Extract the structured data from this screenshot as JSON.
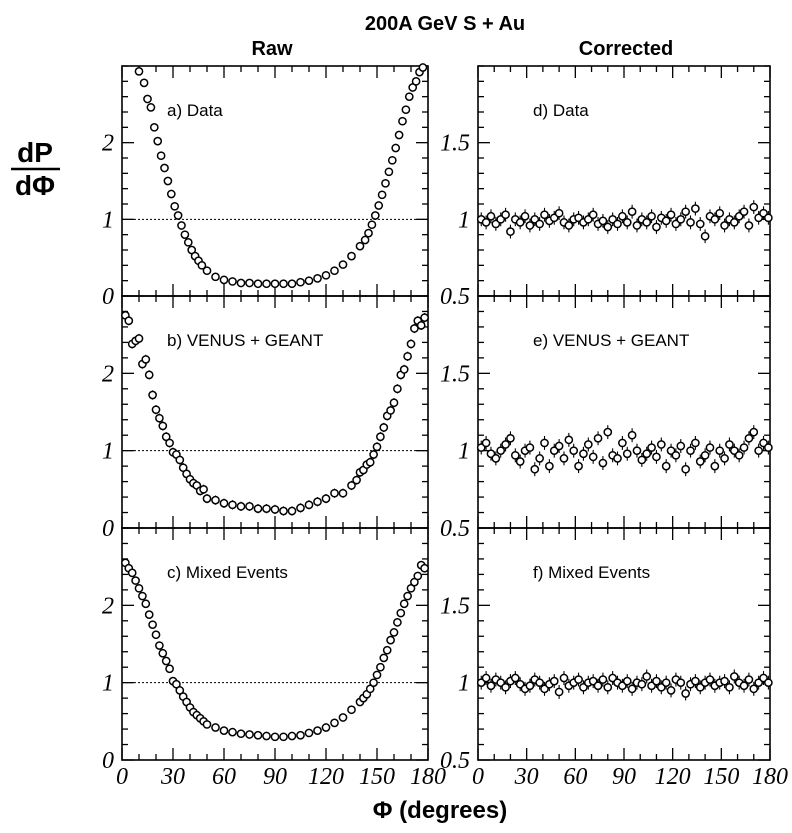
{
  "figure": {
    "title": "200A GeV  S + Au",
    "left_column_title": "Raw",
    "right_column_title": "Corrected",
    "ylabel_numerator": "dP",
    "ylabel_denominator": "dΦ",
    "xlabel": "Φ (degrees)"
  },
  "chart_data": [
    {
      "type": "scatter",
      "panel": "a",
      "column": "Raw",
      "label": "a) Data",
      "xlim": [
        0,
        180
      ],
      "ylim": [
        0,
        3
      ],
      "xticks": [
        0,
        30,
        60,
        90,
        120,
        150,
        180
      ],
      "yticks": [
        0,
        1,
        2
      ],
      "ytick_labels": [
        "0",
        "1",
        "2"
      ],
      "reference_line": 1,
      "error_bars": false,
      "points": {
        "x": [
          10,
          13,
          15,
          17,
          19,
          21,
          23,
          25,
          27,
          29,
          31,
          33,
          35,
          37,
          39,
          41,
          43,
          45,
          47,
          50,
          55,
          60,
          65,
          70,
          75,
          80,
          85,
          90,
          95,
          100,
          105,
          110,
          115,
          120,
          125,
          130,
          135,
          140,
          143,
          145,
          147,
          149,
          151,
          153,
          155,
          157,
          159,
          161,
          163,
          165,
          167,
          169,
          171,
          173,
          175,
          177
        ],
        "y": [
          2.93,
          2.78,
          2.57,
          2.46,
          2.2,
          2.02,
          1.83,
          1.67,
          1.5,
          1.33,
          1.17,
          1.05,
          0.92,
          0.8,
          0.7,
          0.6,
          0.52,
          0.46,
          0.4,
          0.33,
          0.25,
          0.21,
          0.19,
          0.17,
          0.17,
          0.16,
          0.16,
          0.16,
          0.16,
          0.16,
          0.18,
          0.2,
          0.23,
          0.27,
          0.33,
          0.41,
          0.52,
          0.65,
          0.73,
          0.82,
          0.93,
          1.05,
          1.18,
          1.32,
          1.47,
          1.62,
          1.77,
          1.93,
          2.1,
          2.28,
          2.43,
          2.6,
          2.72,
          2.8,
          2.92,
          2.98
        ]
      }
    },
    {
      "type": "scatter",
      "panel": "b",
      "column": "Raw",
      "label": "b) VENUS + GEANT",
      "xlim": [
        0,
        180
      ],
      "ylim": [
        0,
        3
      ],
      "xticks": [
        0,
        30,
        60,
        90,
        120,
        150,
        180
      ],
      "yticks": [
        0,
        1,
        2
      ],
      "ytick_labels": [
        "0",
        "1",
        "2"
      ],
      "reference_line": 1,
      "error_bars": true,
      "points": {
        "x": [
          2,
          4,
          6,
          8,
          10,
          12,
          14,
          16,
          18,
          20,
          22,
          24,
          26,
          28,
          30,
          32,
          34,
          36,
          38,
          40,
          42,
          44,
          46,
          48,
          50,
          55,
          60,
          65,
          70,
          75,
          80,
          85,
          90,
          95,
          100,
          105,
          110,
          115,
          120,
          125,
          130,
          135,
          138,
          140,
          142,
          144,
          146,
          148,
          150,
          152,
          154,
          156,
          158,
          160,
          162,
          164,
          166,
          168,
          170,
          172,
          174,
          176,
          178
        ],
        "y": [
          2.75,
          2.68,
          2.38,
          2.42,
          2.45,
          2.12,
          2.18,
          1.98,
          1.72,
          1.53,
          1.42,
          1.32,
          1.18,
          1.1,
          0.98,
          0.95,
          0.88,
          0.78,
          0.7,
          0.63,
          0.58,
          0.55,
          0.48,
          0.5,
          0.38,
          0.36,
          0.32,
          0.3,
          0.28,
          0.28,
          0.25,
          0.25,
          0.24,
          0.22,
          0.22,
          0.26,
          0.3,
          0.34,
          0.38,
          0.45,
          0.45,
          0.55,
          0.62,
          0.72,
          0.75,
          0.82,
          0.85,
          0.95,
          1.05,
          1.18,
          1.3,
          1.45,
          1.52,
          1.62,
          1.8,
          1.98,
          2.05,
          2.22,
          2.38,
          2.58,
          2.68,
          2.62,
          2.72
        ]
      }
    },
    {
      "type": "scatter",
      "panel": "c",
      "column": "Raw",
      "label": "c) Mixed Events",
      "xlim": [
        0,
        180
      ],
      "ylim": [
        0,
        3
      ],
      "xticks": [
        0,
        30,
        60,
        90,
        120,
        150,
        180
      ],
      "xtick_labels": [
        "0",
        "30",
        "60",
        "90",
        "120",
        "150",
        "180"
      ],
      "yticks": [
        0,
        1,
        2
      ],
      "ytick_labels": [
        "0",
        "1",
        "2"
      ],
      "reference_line": 1,
      "error_bars": false,
      "points": {
        "x": [
          2,
          4,
          6,
          8,
          10,
          12,
          14,
          16,
          18,
          20,
          22,
          24,
          26,
          28,
          30,
          32,
          34,
          36,
          38,
          40,
          42,
          44,
          46,
          48,
          50,
          55,
          60,
          65,
          70,
          75,
          80,
          85,
          90,
          95,
          100,
          105,
          110,
          115,
          120,
          125,
          130,
          135,
          140,
          142,
          144,
          146,
          148,
          150,
          152,
          154,
          156,
          158,
          160,
          162,
          164,
          166,
          168,
          170,
          172,
          174,
          176,
          178
        ],
        "y": [
          2.55,
          2.48,
          2.42,
          2.32,
          2.22,
          2.12,
          2.02,
          1.88,
          1.75,
          1.62,
          1.48,
          1.38,
          1.28,
          1.18,
          1.02,
          0.98,
          0.9,
          0.82,
          0.75,
          0.68,
          0.62,
          0.58,
          0.54,
          0.5,
          0.46,
          0.42,
          0.38,
          0.36,
          0.34,
          0.33,
          0.32,
          0.31,
          0.3,
          0.3,
          0.31,
          0.32,
          0.35,
          0.38,
          0.42,
          0.48,
          0.55,
          0.65,
          0.75,
          0.8,
          0.85,
          0.92,
          1.0,
          1.1,
          1.2,
          1.32,
          1.42,
          1.55,
          1.65,
          1.78,
          1.9,
          2.02,
          2.12,
          2.22,
          2.3,
          2.38,
          2.52,
          2.48
        ]
      }
    },
    {
      "type": "scatter",
      "panel": "d",
      "column": "Corrected",
      "label": "d) Data",
      "xlim": [
        0,
        180
      ],
      "ylim": [
        0.5,
        2.0
      ],
      "xticks": [
        0,
        30,
        60,
        90,
        120,
        150,
        180
      ],
      "yticks": [
        0.5,
        1,
        1.5
      ],
      "ytick_labels": [
        "0.5",
        "1",
        "1.5"
      ],
      "reference_line": null,
      "error_bars": true,
      "points": {
        "x": [
          2,
          5,
          8,
          11,
          14,
          17,
          20,
          23,
          26,
          29,
          32,
          35,
          38,
          41,
          44,
          47,
          50,
          53,
          56,
          59,
          62,
          65,
          68,
          71,
          74,
          77,
          80,
          83,
          86,
          89,
          92,
          95,
          98,
          101,
          104,
          107,
          110,
          113,
          116,
          119,
          122,
          125,
          128,
          131,
          134,
          137,
          140,
          143,
          146,
          149,
          152,
          155,
          158,
          161,
          164,
          167,
          170,
          173,
          176,
          179
        ],
        "y": [
          1.0,
          0.98,
          1.02,
          0.97,
          1.0,
          1.03,
          0.92,
          1.0,
          0.98,
          1.02,
          0.96,
          1.0,
          0.97,
          1.03,
          0.99,
          1.01,
          1.04,
          0.98,
          0.96,
          1.0,
          1.01,
          0.98,
          1.0,
          1.03,
          0.97,
          0.99,
          0.95,
          1.0,
          0.97,
          1.02,
          0.98,
          1.05,
          0.96,
          1.0,
          0.98,
          1.02,
          0.95,
          1.01,
          0.99,
          1.03,
          0.97,
          1.0,
          1.05,
          0.98,
          1.07,
          0.97,
          0.89,
          1.02,
          1.0,
          1.04,
          0.96,
          1.0,
          0.98,
          1.02,
          1.05,
          0.96,
          1.08,
          1.01,
          1.04,
          1.01
        ]
      }
    },
    {
      "type": "scatter",
      "panel": "e",
      "column": "Corrected",
      "label": "e) VENUS + GEANT",
      "xlim": [
        0,
        180
      ],
      "ylim": [
        0.5,
        2.0
      ],
      "xticks": [
        0,
        30,
        60,
        90,
        120,
        150,
        180
      ],
      "yticks": [
        0.5,
        1,
        1.5
      ],
      "ytick_labels": [
        "0.5",
        "1",
        "1.5"
      ],
      "reference_line": null,
      "error_bars": true,
      "points": {
        "x": [
          2,
          5,
          8,
          11,
          14,
          17,
          20,
          23,
          26,
          29,
          32,
          35,
          38,
          41,
          44,
          47,
          50,
          53,
          56,
          59,
          62,
          65,
          68,
          71,
          74,
          77,
          80,
          83,
          86,
          89,
          92,
          95,
          98,
          101,
          104,
          107,
          110,
          113,
          116,
          119,
          122,
          125,
          128,
          131,
          134,
          137,
          140,
          143,
          146,
          149,
          152,
          155,
          158,
          161,
          164,
          167,
          170,
          173,
          176,
          179
        ],
        "y": [
          1.02,
          1.05,
          0.98,
          0.95,
          1.0,
          1.04,
          1.08,
          0.97,
          0.93,
          1.0,
          1.02,
          0.88,
          0.95,
          1.05,
          0.9,
          1.0,
          1.03,
          0.95,
          1.07,
          1.0,
          0.9,
          0.98,
          1.04,
          0.96,
          1.08,
          0.92,
          1.12,
          0.97,
          0.95,
          1.05,
          0.98,
          1.1,
          1.0,
          0.94,
          0.98,
          1.02,
          0.96,
          1.04,
          0.9,
          1.0,
          0.97,
          1.03,
          0.88,
          1.0,
          1.05,
          0.93,
          0.97,
          1.02,
          0.9,
          1.0,
          0.95,
          1.04,
          1.0,
          0.97,
          1.02,
          1.08,
          1.12,
          1.0,
          1.05,
          1.02
        ]
      }
    },
    {
      "type": "scatter",
      "panel": "f",
      "column": "Corrected",
      "label": "f) Mixed Events",
      "xlim": [
        0,
        180
      ],
      "ylim": [
        0.5,
        2.0
      ],
      "xticks": [
        0,
        30,
        60,
        90,
        120,
        150,
        180
      ],
      "xtick_labels": [
        "0",
        "30",
        "60",
        "90",
        "120",
        "150",
        "180"
      ],
      "yticks": [
        0.5,
        1,
        1.5
      ],
      "ytick_labels": [
        "0.5",
        "1",
        "1.5"
      ],
      "reference_line": null,
      "error_bars": true,
      "points": {
        "x": [
          2,
          5,
          8,
          11,
          14,
          17,
          20,
          23,
          26,
          29,
          32,
          35,
          38,
          41,
          44,
          47,
          50,
          53,
          56,
          59,
          62,
          65,
          68,
          71,
          74,
          77,
          80,
          83,
          86,
          89,
          92,
          95,
          98,
          101,
          104,
          107,
          110,
          113,
          116,
          119,
          122,
          125,
          128,
          131,
          134,
          137,
          140,
          143,
          146,
          149,
          152,
          155,
          158,
          161,
          164,
          167,
          170,
          173,
          176,
          179
        ],
        "y": [
          1.0,
          1.03,
          0.98,
          1.02,
          1.0,
          0.97,
          1.01,
          1.03,
          0.99,
          0.96,
          0.98,
          1.02,
          1.0,
          0.96,
          0.99,
          1.01,
          0.94,
          1.03,
          0.98,
          1.0,
          1.02,
          0.97,
          1.0,
          1.01,
          0.98,
          1.02,
          0.97,
          1.03,
          1.0,
          0.98,
          1.01,
          0.96,
          1.0,
          0.99,
          1.04,
          0.98,
          1.01,
          0.97,
          1.0,
          0.95,
          1.02,
          1.0,
          0.93,
          0.99,
          1.01,
          0.97,
          1.0,
          1.02,
          0.98,
          1.0,
          1.01,
          0.97,
          1.04,
          1.0,
          0.98,
          1.02,
          0.96,
          1.0,
          1.03,
          1.0
        ]
      }
    }
  ]
}
